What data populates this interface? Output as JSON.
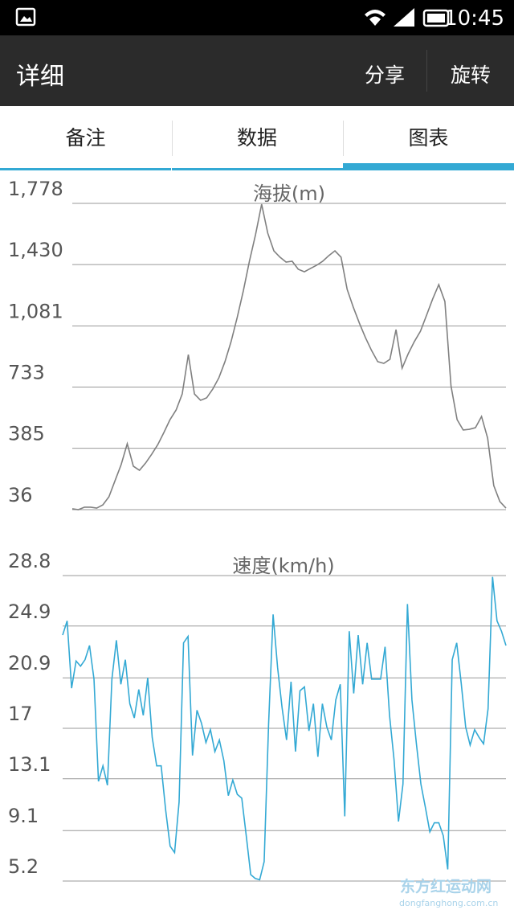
{
  "status_bar": {
    "time": "10:45"
  },
  "app_bar": {
    "title": "详细",
    "actions": [
      "分享",
      "旋转"
    ]
  },
  "tabs": {
    "items": [
      "备注",
      "数据",
      "图表"
    ],
    "selected": 2
  },
  "chart_data": [
    {
      "type": "line",
      "title": "海拔(m)",
      "color": "#808080",
      "grid": true,
      "ylim": [
        36,
        1778
      ],
      "yticks": [
        36,
        385,
        733,
        {
          "value": 1081,
          "label": "1,081"
        },
        {
          "value": 1430,
          "label": "1,430"
        },
        {
          "value": 1778,
          "label": "1,778"
        }
      ],
      "values": [
        41,
        36,
        50,
        50,
        45,
        63,
        109,
        201,
        292,
        411,
        283,
        260,
        301,
        351,
        406,
        475,
        548,
        603,
        694,
        918,
        694,
        658,
        672,
        722,
        786,
        878,
        992,
        1129,
        1280,
        1449,
        1600,
        1773,
        1609,
        1508,
        1472,
        1444,
        1449,
        1403,
        1389,
        1408,
        1426,
        1449,
        1481,
        1508,
        1472,
        1289,
        1188,
        1097,
        1014,
        941,
        878,
        868,
        891,
        1060,
        841,
        923,
        992,
        1051,
        1142,
        1234,
        1316,
        1220,
        740,
        548,
        489,
        493,
        502,
        566,
        443,
        173,
        82,
        45
      ]
    },
    {
      "type": "line",
      "title": "速度(km/h)",
      "color": "#33a9d4",
      "grid": true,
      "ylim": [
        5.2,
        28.8
      ],
      "yticks": [
        5.2,
        9.1,
        13.1,
        17,
        20.9,
        24.9,
        28.8
      ],
      "values": [
        24.2,
        25.3,
        20.1,
        22.2,
        21.8,
        22.3,
        23.4,
        20.8,
        12.9,
        14.1,
        12.6,
        20.8,
        23.8,
        20.4,
        22.3,
        18.9,
        17.8,
        20.0,
        18.0,
        20.9,
        16.3,
        14.1,
        14.1,
        10.7,
        7.9,
        7.4,
        11.3,
        23.6,
        24.1,
        14.9,
        18.4,
        17.4,
        15.9,
        16.9,
        15.2,
        16.1,
        14.5,
        11.8,
        13.0,
        11.9,
        11.6,
        8.7,
        5.7,
        5.4,
        5.3,
        6.7,
        17.4,
        25.8,
        21.7,
        18.6,
        16.1,
        20.6,
        15.2,
        19.9,
        20.2,
        16.8,
        18.9,
        14.8,
        18.9,
        17.1,
        16.1,
        19.2,
        20.4,
        10.2,
        24.5,
        19.7,
        24.2,
        20.4,
        23.6,
        20.8,
        20.8,
        20.8,
        23.3,
        18.0,
        14.6,
        9.8,
        12.7,
        26.6,
        19.2,
        15.8,
        12.7,
        10.9,
        9.0,
        9.7,
        9.7,
        8.7,
        6.1,
        22.3,
        23.6,
        20.5,
        17.1,
        15.7,
        16.9,
        16.3,
        15.8,
        18.5,
        28.7,
        25.3,
        24.5,
        23.4
      ]
    }
  ],
  "watermark": {
    "name": "东方红运动网",
    "url": "dongfanghong.com.cn"
  }
}
